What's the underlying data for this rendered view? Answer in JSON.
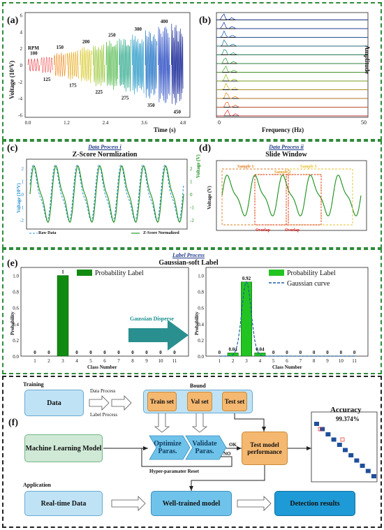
{
  "panel_a": {
    "label": "(a)",
    "ylabel": "Voltage (10²V)",
    "xlabel": "Time (s)",
    "rpm_label": "RPM",
    "x_ticks": [
      "0.0",
      "1.2",
      "2.4",
      "3.6",
      "4.8"
    ],
    "y_ticks": [
      "6",
      "4",
      "2",
      "0",
      "-2",
      "-4",
      "-6"
    ],
    "rpm_values": [
      "100",
      "125",
      "150",
      "175",
      "200",
      "225",
      "250",
      "275",
      "300",
      "350",
      "400",
      "450"
    ]
  },
  "panel_b": {
    "label": "(b)",
    "ylabel": "Amplitude",
    "xlabel": "Frequency (Hz)",
    "x_ticks": [
      "0",
      "50"
    ]
  },
  "panel_c": {
    "label": "(c)",
    "subtitle": "Data Process i",
    "title": "Z-Score Normlization",
    "ylabel_left": "Voltage (10²V)",
    "ylabel_right": "Voltage (V)",
    "y_ticks_left": [
      "2",
      "1",
      "0",
      "-1",
      "-2"
    ],
    "y_ticks_right": [
      "2",
      "1",
      "0",
      "-1",
      "-2"
    ],
    "legend_raw": "Raw Data",
    "legend_z": "Z-Score Normalized"
  },
  "panel_d": {
    "label": "(d)",
    "subtitle": "Data Process ii",
    "title": "Slide Window",
    "ylabel": "Voltage (V)",
    "samples": [
      "Sample 1",
      "Sample 2",
      "Sample 3"
    ],
    "overlap": "Overlap"
  },
  "panel_e": {
    "label": "(e)",
    "subtitle": "Label Process",
    "title": "Gaussian-soft Label",
    "arrow_text": "Gaussian Disperse",
    "ylabel": "Probability",
    "xlabel": "Class Number",
    "y_ticks": [
      "1.0",
      "0.8",
      "0.6",
      "0.4",
      "0.2",
      "0.0"
    ],
    "x_ticks": [
      "1",
      "2",
      "3",
      "4",
      "5",
      "6",
      "7",
      "8",
      "9",
      "10",
      "11"
    ],
    "legend_prob": "Probability Label",
    "legend_gauss": "Gaussian curve"
  },
  "chart_data": [
    {
      "type": "bar",
      "categories": [
        "1",
        "2",
        "3",
        "4",
        "5",
        "6",
        "7",
        "8",
        "9",
        "10",
        "11"
      ],
      "values": [
        0,
        0,
        1,
        0,
        0,
        0,
        0,
        0,
        0,
        0,
        0
      ],
      "value_labels": [
        "0",
        "0",
        "1",
        "0",
        "0",
        "0",
        "0",
        "0",
        "0",
        "0",
        "0"
      ],
      "series": [
        {
          "name": "Probability Label",
          "values": [
            0,
            0,
            1,
            0,
            0,
            0,
            0,
            0,
            0,
            0,
            0
          ]
        }
      ],
      "ylabel": "Probability",
      "xlabel": "Class Number",
      "ylim": [
        0,
        1.1
      ],
      "colors": {
        "bar": "#118a11"
      }
    },
    {
      "type": "bar",
      "categories": [
        "1",
        "2",
        "3",
        "4",
        "5",
        "6",
        "7",
        "8",
        "9",
        "10",
        "11"
      ],
      "values": [
        0,
        0.04,
        0.92,
        0.04,
        0,
        0,
        0,
        0,
        0,
        0,
        0
      ],
      "value_labels": [
        "0",
        "0.04",
        "0.92",
        "0.04",
        "0",
        "0",
        "0",
        "0",
        "0",
        "0",
        "0"
      ],
      "series": [
        {
          "name": "Probability Label",
          "values": [
            0,
            0.04,
            0.92,
            0.04,
            0,
            0,
            0,
            0,
            0,
            0,
            0
          ]
        },
        {
          "name": "Gaussian curve",
          "type": "line",
          "mu": 3,
          "peak": 0.92
        }
      ],
      "ylabel": "Probability",
      "xlabel": "Class Number",
      "ylim": [
        0,
        1.1
      ],
      "colors": {
        "bar": "#22c422",
        "curve": "#1f5fa8"
      }
    }
  ],
  "panel_f": {
    "label": "(f)",
    "training": "Training",
    "application": "Application",
    "data": "Data",
    "data_process": "Data Process",
    "label_process": "Label Process",
    "bound": "Bound",
    "train_set": "Train set",
    "val_set": "Val set",
    "test_set": "Test set",
    "ml_model": "Machine Learning Model",
    "optimize": "Optimize Paras.",
    "validate": "Validate Paras.",
    "ok": "OK",
    "no": "NO",
    "reset": "Hyper-paramater Reset",
    "test_perf": "Test model performance",
    "accuracy_label": "Accuracy",
    "accuracy_value": "99.374%",
    "realtime": "Real-time Data",
    "welltrained": "Well-trained model",
    "detection": "Detection results"
  },
  "colors": {
    "green_border": "#2f8a3a",
    "light_blue": "#bfe3f5",
    "blue_box": "#6fc3ea",
    "deep_blue": "#1e9ad6",
    "orange": "#f5b870",
    "green_box": "#cfe9d6",
    "teal": "#2a8f8f"
  }
}
